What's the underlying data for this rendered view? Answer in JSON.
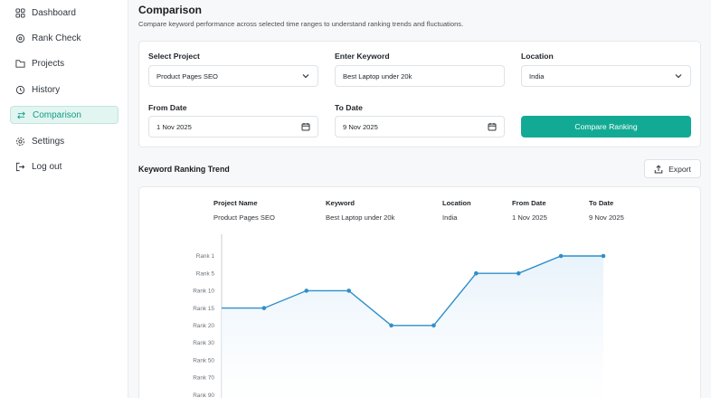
{
  "sidebar": {
    "items": [
      {
        "label": "Dashboard",
        "icon": "dashboard-icon",
        "active": false
      },
      {
        "label": "Rank Check",
        "icon": "rank-check-icon",
        "active": false
      },
      {
        "label": "Projects",
        "icon": "folder-icon",
        "active": false
      },
      {
        "label": "History",
        "icon": "history-icon",
        "active": false
      },
      {
        "label": "Comparison",
        "icon": "compare-arrows-icon",
        "active": true
      },
      {
        "label": "Settings",
        "icon": "gear-icon",
        "active": false
      },
      {
        "label": "Log out",
        "icon": "logout-icon",
        "active": false
      }
    ]
  },
  "header": {
    "title": "Comparison",
    "subtitle": "Compare keyword performance across selected time ranges to understand ranking trends and fluctuations."
  },
  "form": {
    "project_label": "Select Project",
    "project_value": "Product Pages SEO",
    "keyword_label": "Enter Keyword",
    "keyword_value": "Best Laptop under 20k",
    "location_label": "Location",
    "location_value": "India",
    "from_label": "From Date",
    "from_value": "1 Nov 2025",
    "to_label": "To Date",
    "to_value": "9 Nov 2025",
    "compare_label": "Compare Ranking"
  },
  "trend": {
    "title": "Keyword Ranking Trend",
    "export_label": "Export"
  },
  "summary": {
    "headers": [
      "Project Name",
      "Keyword",
      "Location",
      "From Date",
      "To Date"
    ],
    "values": [
      "Product Pages SEO",
      "Best Laptop under 20k",
      "India",
      "1 Nov 2025",
      "9 Nov 2025"
    ]
  },
  "colors": {
    "accent": "#12aa94",
    "line": "#2f8fc9",
    "area": "#e8f3fb"
  },
  "chart_data": {
    "type": "line",
    "ylabels": [
      "Rank 1",
      "Rank 5",
      "Rank 10",
      "Rank 15",
      "Rank 20",
      "Rank 30",
      "Rank 50",
      "Rank 70",
      "Rank 90"
    ],
    "y_level_index": [
      3,
      3,
      2,
      2,
      4,
      4,
      1,
      1,
      0,
      0
    ],
    "yaxis_inverted": true,
    "grid": false
  }
}
